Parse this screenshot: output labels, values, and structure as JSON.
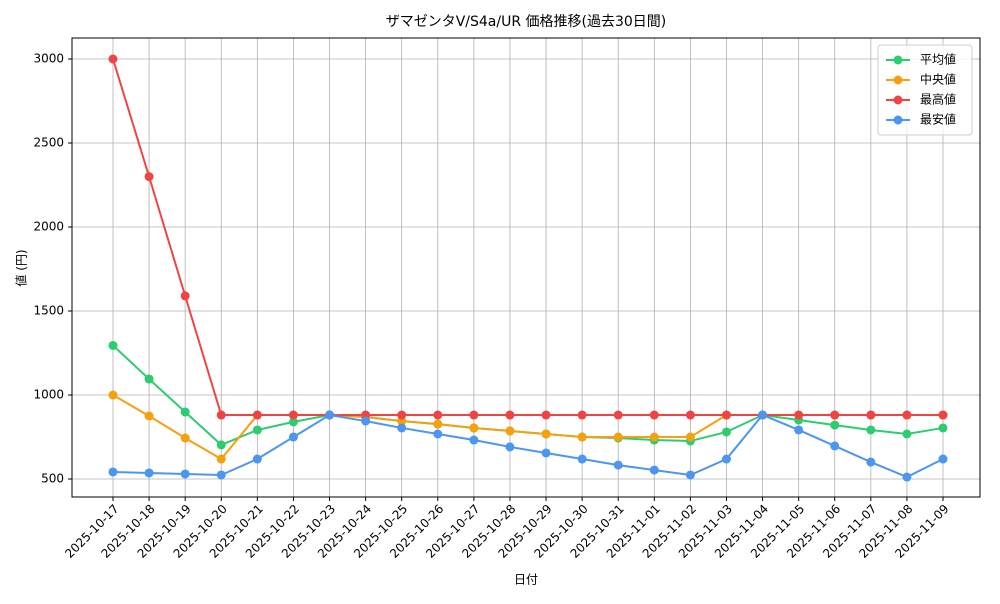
{
  "chart_data": {
    "type": "line",
    "title": "ザマゼンタV/S4a/UR 価格推移(過去30日間)",
    "x_label": "日付",
    "y_label": "値 (円)",
    "categories": [
      "2025-10-17",
      "2025-10-18",
      "2025-10-19",
      "2025-10-20",
      "2025-10-21",
      "2025-10-22",
      "2025-10-23",
      "2025-10-24",
      "2025-10-25",
      "2025-10-26",
      "2025-10-27",
      "2025-10-28",
      "2025-10-29",
      "2025-10-30",
      "2025-10-31",
      "2025-11-01",
      "2025-11-02",
      "2025-11-03",
      "2025-11-04",
      "2025-11-05",
      "2025-11-06",
      "2025-11-07",
      "2025-11-08",
      "2025-11-09"
    ],
    "series": [
      {
        "name": "平均値",
        "color": "#2ecc71",
        "values": [
          1295,
          1095,
          899,
          703,
          792,
          840,
          881,
          869,
          845,
          827,
          804,
          786,
          768,
          750,
          744,
          732,
          726,
          780,
          881,
          851,
          821,
          792,
          768,
          804
        ]
      },
      {
        "name": "中央値",
        "color": "#f5a00f",
        "values": [
          1000,
          875,
          744,
          619,
          881,
          881,
          881,
          869,
          845,
          827,
          804,
          786,
          768,
          750,
          750,
          750,
          750,
          881,
          881,
          881,
          881,
          881,
          881,
          881
        ]
      },
      {
        "name": "最高値",
        "color": "#ef4444",
        "values": [
          3000,
          2300,
          1590,
          881,
          881,
          881,
          881,
          881,
          881,
          881,
          881,
          881,
          881,
          881,
          881,
          881,
          881,
          881,
          881,
          881,
          881,
          881,
          881,
          881
        ]
      },
      {
        "name": "最安値",
        "color": "#4c96f0",
        "values": [
          542,
          536,
          530,
          524,
          619,
          750,
          881,
          845,
          804,
          768,
          732,
          691,
          655,
          619,
          583,
          553,
          524,
          619,
          881,
          792,
          697,
          601,
          512,
          619
        ]
      }
    ],
    "ylim": [
      393,
      3125
    ],
    "yticks": [
      500,
      1000,
      1500,
      2000,
      2500,
      3000
    ],
    "grid": true,
    "legend": "upper right"
  }
}
